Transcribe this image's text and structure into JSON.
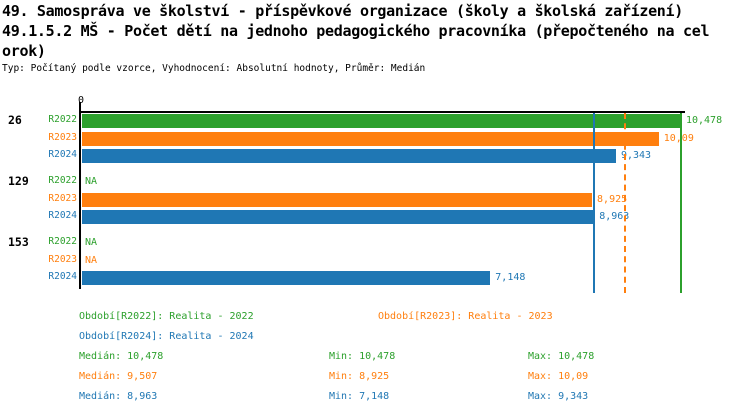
{
  "title": {
    "line1": "49. Samospráva ve školství - příspěvkové organizace (školy a školská zařízení)",
    "line2": "49.1.5.2 MŠ - Počet dětí na jednoho pedagogického pracovníka (přepočteného na cel",
    "line3": "orok)",
    "meta": "Typ: Počítaný podle vzorce, Vyhodnocení: Absolutní hodnoty, Průměr: Medián"
  },
  "series_colors": {
    "R2022": "#2ca02c",
    "R2023": "#ff7f0e",
    "R2024": "#1f77b4"
  },
  "chart_data": {
    "type": "bar",
    "orientation": "horizontal",
    "x_axis": {
      "zero_label": "0",
      "xlim": [
        0,
        10.55
      ],
      "grid": false
    },
    "groups": [
      {
        "label": "26",
        "rows": [
          {
            "period": "R2022",
            "value": 10.478,
            "display": "10,478"
          },
          {
            "period": "R2023",
            "value": 10.09,
            "display": "10,09"
          },
          {
            "period": "R2024",
            "value": 9.343,
            "display": "9,343"
          }
        ]
      },
      {
        "label": "129",
        "rows": [
          {
            "period": "R2022",
            "value": null,
            "display": "NA"
          },
          {
            "period": "R2023",
            "value": 8.925,
            "display": "8,925"
          },
          {
            "period": "R2024",
            "value": 8.963,
            "display": "8,963"
          }
        ]
      },
      {
        "label": "153",
        "rows": [
          {
            "period": "R2022",
            "value": null,
            "display": "NA"
          },
          {
            "period": "R2023",
            "value": null,
            "display": "NA"
          },
          {
            "period": "R2024",
            "value": 7.148,
            "display": "7,148"
          }
        ]
      }
    ],
    "median_lines": [
      {
        "series": "R2022",
        "value": 10.478,
        "style": "solid"
      },
      {
        "series": "R2023",
        "value": 9.507,
        "style": "dashed"
      },
      {
        "series": "R2024",
        "value": 8.963,
        "style": "solid"
      }
    ]
  },
  "legend": [
    {
      "series": "R2022",
      "label": "Období[R2022]: Realita - 2022"
    },
    {
      "series": "R2023",
      "label": "Období[R2023]: Realita - 2023"
    },
    {
      "series": "R2024",
      "label": "Období[R2024]: Realita - 2024"
    }
  ],
  "stats": [
    {
      "series": "R2022",
      "median": "Medián: 10,478",
      "min": "Min: 10,478",
      "max": "Max: 10,478"
    },
    {
      "series": "R2023",
      "median": "Medián: 9,507",
      "min": "Min: 8,925",
      "max": "Max: 10,09"
    },
    {
      "series": "R2024",
      "median": "Medián: 8,963",
      "min": "Min: 7,148",
      "max": "Max: 9,343"
    }
  ]
}
